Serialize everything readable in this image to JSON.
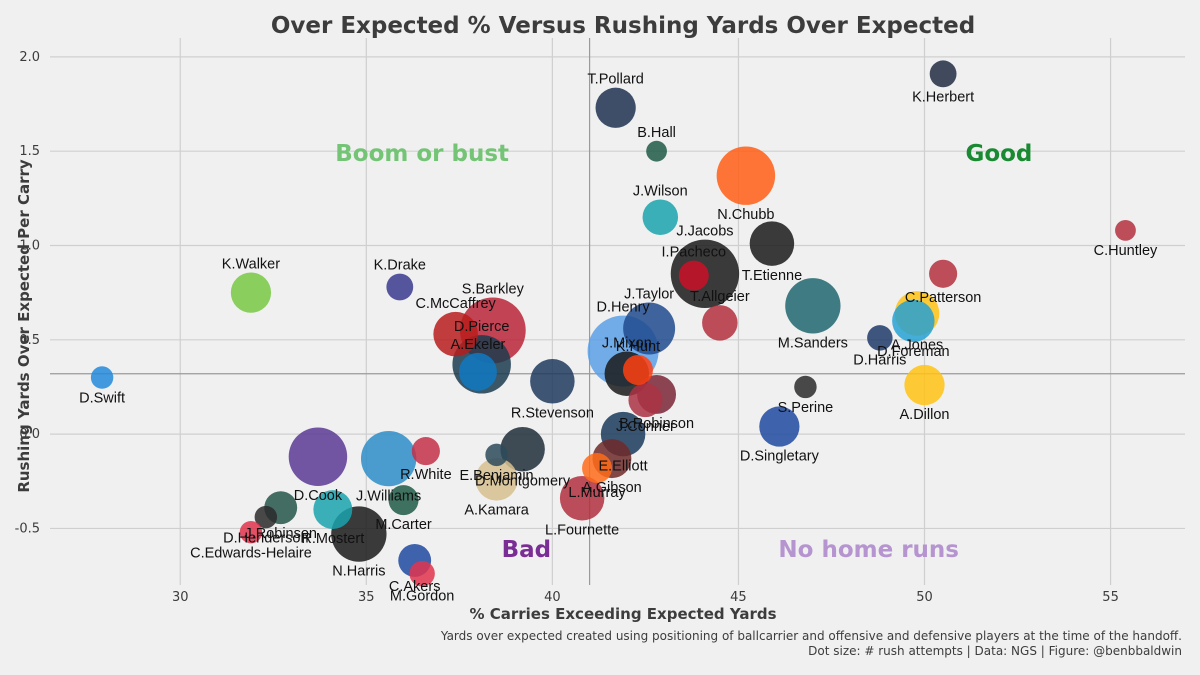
{
  "chart_data": {
    "type": "scatter",
    "title": "Over Expected % Versus Rushing Yards Over Expected",
    "xlabel": "% Carries Exceeding Expected Yards",
    "ylabel": "Rushing Yards Over Expected Per Carry",
    "xlim": [
      26.5,
      57
    ],
    "ylim": [
      -0.8,
      2.1
    ],
    "xticks": [
      30,
      35,
      40,
      45,
      50,
      55
    ],
    "yticks": [
      -0.5,
      0.0,
      0.5,
      1.0,
      1.5,
      2.0
    ],
    "ytick_labels": [
      "-0.5",
      "0.0",
      "0.5",
      "1.0",
      "1.5",
      "2.0"
    ],
    "grid": true,
    "reference_lines": {
      "x": 41,
      "y": 0.32
    },
    "quadrant_labels": [
      {
        "text": "Boom or bust",
        "x": 36.5,
        "y": 1.49,
        "color": "#74c476"
      },
      {
        "text": "Good",
        "x": 52,
        "y": 1.49,
        "color": "#1a8a32"
      },
      {
        "text": "Bad",
        "x": 39.3,
        "y": -0.61,
        "color": "#7b2d96"
      },
      {
        "text": "No home runs",
        "x": 48.5,
        "y": -0.61,
        "color": "#b594cf"
      }
    ],
    "points": [
      {
        "player": "K.Herbert",
        "x": 50.5,
        "y": 1.91,
        "attempts": 20,
        "color": "#222d42"
      },
      {
        "player": "T.Pollard",
        "x": 41.7,
        "y": 1.73,
        "attempts": 45,
        "color": "#1e3150"
      },
      {
        "player": "B.Hall",
        "x": 42.8,
        "y": 1.5,
        "attempts": 12,
        "color": "#1e5a45"
      },
      {
        "player": "N.Chubb",
        "x": 45.2,
        "y": 1.37,
        "attempts": 95,
        "color": "#ff5e15"
      },
      {
        "player": "J.Wilson",
        "x": 42.9,
        "y": 1.15,
        "attempts": 35,
        "color": "#1aa3ad"
      },
      {
        "player": "C.Huntley",
        "x": 55.4,
        "y": 1.08,
        "attempts": 12,
        "color": "#b3303e"
      },
      {
        "player": "T.Etienne",
        "x": 45.9,
        "y": 1.01,
        "attempts": 55,
        "color": "#1a1a1a"
      },
      {
        "player": "J.Jacobs",
        "x": 44.1,
        "y": 0.85,
        "attempts": 130,
        "color": "#1a1a1a"
      },
      {
        "player": "I.Pacheco",
        "x": 43.8,
        "y": 0.84,
        "attempts": 25,
        "color": "#cc1028"
      },
      {
        "player": "C.Patterson",
        "x": 50.5,
        "y": 0.85,
        "attempts": 22,
        "color": "#b3303e"
      },
      {
        "player": "K.Walker",
        "x": 31.9,
        "y": 0.75,
        "attempts": 45,
        "color": "#78c843"
      },
      {
        "player": "K.Drake",
        "x": 35.9,
        "y": 0.78,
        "attempts": 20,
        "color": "#3a3a8e"
      },
      {
        "player": "M.Sanders",
        "x": 47.0,
        "y": 0.68,
        "attempts": 85,
        "color": "#1f6670"
      },
      {
        "player": "A.Jones",
        "x": 49.8,
        "y": 0.64,
        "attempts": 55,
        "color": "#ffc314"
      },
      {
        "player": "D.Foreman",
        "x": 49.7,
        "y": 0.6,
        "attempts": 50,
        "color": "#26a1d3"
      },
      {
        "player": "J.Taylor",
        "x": 42.6,
        "y": 0.56,
        "attempts": 75,
        "color": "#1f4a8e"
      },
      {
        "player": "T.Allgeier",
        "x": 44.5,
        "y": 0.59,
        "attempts": 35,
        "color": "#b32f3c"
      },
      {
        "player": "S.Barkley",
        "x": 38.4,
        "y": 0.55,
        "attempts": 120,
        "color": "#b82538"
      },
      {
        "player": "C.McCaffrey",
        "x": 37.4,
        "y": 0.53,
        "attempts": 55,
        "color": "#b81c1c"
      },
      {
        "player": "D.Harris",
        "x": 48.8,
        "y": 0.51,
        "attempts": 18,
        "color": "#1e3a6a"
      },
      {
        "player": "D.Henry",
        "x": 41.9,
        "y": 0.44,
        "attempts": 140,
        "color": "#5aa0e6"
      },
      {
        "player": "D.Pierce",
        "x": 38.1,
        "y": 0.37,
        "attempts": 95,
        "color": "#1b3b4e"
      },
      {
        "player": "A.Ekeler",
        "x": 38.0,
        "y": 0.33,
        "attempts": 40,
        "color": "#1178c2"
      },
      {
        "player": "K.Hunt",
        "x": 42.3,
        "y": 0.34,
        "attempts": 25,
        "color": "#ff4010"
      },
      {
        "player": "J.Mixon",
        "x": 42.0,
        "y": 0.32,
        "attempts": 55,
        "color": "#1a1a1a"
      },
      {
        "player": "R.Stevenson",
        "x": 40.0,
        "y": 0.28,
        "attempts": 55,
        "color": "#1f3a5e"
      },
      {
        "player": "A.Dillon",
        "x": 50.0,
        "y": 0.26,
        "attempts": 45,
        "color": "#ffc314"
      },
      {
        "player": "S.Perine",
        "x": 46.8,
        "y": 0.25,
        "attempts": 14,
        "color": "#2a2a2a"
      },
      {
        "player": "D.Swift",
        "x": 27.9,
        "y": 0.3,
        "attempts": 14,
        "color": "#2389d9"
      },
      {
        "player": "B.Robinson",
        "x": 42.8,
        "y": 0.21,
        "attempts": 42,
        "color": "#7a2436"
      },
      {
        "player": "J.Conner",
        "x": 42.5,
        "y": 0.18,
        "attempts": 32,
        "color": "#aa3244"
      },
      {
        "player": "D.Singletary",
        "x": 46.1,
        "y": 0.04,
        "attempts": 45,
        "color": "#1f4aa0"
      },
      {
        "player": "E.Elliott",
        "x": 41.9,
        "y": 0.0,
        "attempts": 55,
        "color": "#1a3a5a"
      },
      {
        "player": "D.Montgomery",
        "x": 39.2,
        "y": -0.08,
        "attempts": 55,
        "color": "#1f2e3a"
      },
      {
        "player": "E.Benjamin",
        "x": 38.5,
        "y": -0.11,
        "attempts": 14,
        "color": "#2d4a5a"
      },
      {
        "player": "A.Gibson",
        "x": 41.6,
        "y": -0.13,
        "attempts": 42,
        "color": "#6e2a2a"
      },
      {
        "player": "L.Murray",
        "x": 41.2,
        "y": -0.18,
        "attempts": 25,
        "color": "#ff6c1a"
      },
      {
        "player": "D.Cook",
        "x": 33.7,
        "y": -0.12,
        "attempts": 95,
        "color": "#5b3a94"
      },
      {
        "player": "J.Williams",
        "x": 35.6,
        "y": -0.13,
        "attempts": 85,
        "color": "#2e8dc8"
      },
      {
        "player": "R.White",
        "x": 36.6,
        "y": -0.09,
        "attempts": 22,
        "color": "#c43048"
      },
      {
        "player": "A.Kamara",
        "x": 38.5,
        "y": -0.24,
        "attempts": 50,
        "color": "#d6c08f"
      },
      {
        "player": "M.Carter",
        "x": 36.0,
        "y": -0.35,
        "attempts": 25,
        "color": "#1e5a45"
      },
      {
        "player": "L.Fournette",
        "x": 40.8,
        "y": -0.34,
        "attempts": 55,
        "color": "#b0303e"
      },
      {
        "player": "J.Robinson",
        "x": 32.7,
        "y": -0.39,
        "attempts": 30,
        "color": "#24554a"
      },
      {
        "player": "R.Mostert",
        "x": 34.1,
        "y": -0.4,
        "attempts": 42,
        "color": "#1aa3ad"
      },
      {
        "player": "D.Henderson",
        "x": 32.3,
        "y": -0.44,
        "attempts": 14,
        "color": "#2a2a2a"
      },
      {
        "player": "C.Edwards-Helaire",
        "x": 31.9,
        "y": -0.52,
        "attempts": 14,
        "color": "#e0344e"
      },
      {
        "player": "N.Harris",
        "x": 34.8,
        "y": -0.53,
        "attempts": 85,
        "color": "#1a1a1a"
      },
      {
        "player": "C.Akers",
        "x": 36.3,
        "y": -0.67,
        "attempts": 30,
        "color": "#1f4aa0"
      },
      {
        "player": "M.Gordon",
        "x": 36.5,
        "y": -0.74,
        "attempts": 18,
        "color": "#e0344e"
      }
    ],
    "caption_lines": [
      "Yards over expected created using positioning of ballcarrier and offensive and defensive players at the time of the handoff.",
      "Dot size: # rush attempts | Data: NGS | Figure: @benbbaldwin"
    ]
  }
}
